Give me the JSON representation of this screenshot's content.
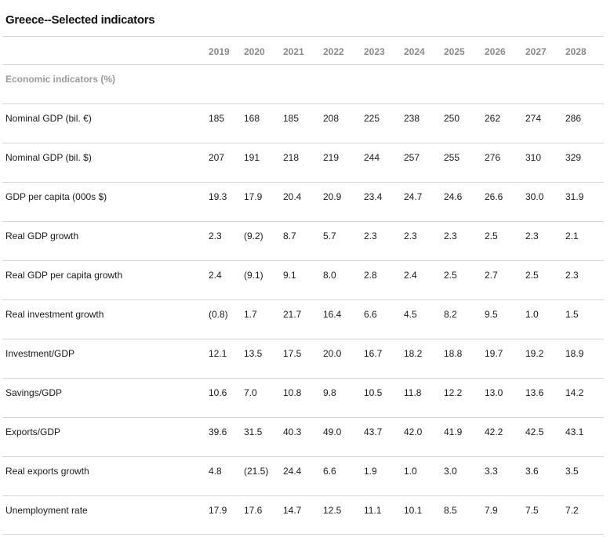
{
  "title": "Greece--Selected indicators",
  "years": [
    "2019",
    "2020",
    "2021",
    "2022",
    "2023",
    "2024",
    "2025",
    "2026",
    "2027",
    "2028"
  ],
  "section_label": "Economic indicators (%)",
  "rows": [
    {
      "label": "Nominal GDP (bil. €)",
      "values": [
        "185",
        "168",
        "185",
        "208",
        "225",
        "238",
        "250",
        "262",
        "274",
        "286"
      ]
    },
    {
      "label": "Nominal GDP (bil. $)",
      "values": [
        "207",
        "191",
        "218",
        "219",
        "244",
        "257",
        "255",
        "276",
        "310",
        "329"
      ]
    },
    {
      "label": "GDP per capita (000s $)",
      "values": [
        "19.3",
        "17.9",
        "20.4",
        "20.9",
        "23.4",
        "24.7",
        "24.6",
        "26.6",
        "30.0",
        "31.9"
      ]
    },
    {
      "label": "Real GDP growth",
      "values": [
        "2.3",
        "(9.2)",
        "8.7",
        "5.7",
        "2.3",
        "2.3",
        "2.3",
        "2.5",
        "2.3",
        "2.1"
      ]
    },
    {
      "label": "Real GDP per capita growth",
      "values": [
        "2.4",
        "(9.1)",
        "9.1",
        "8.0",
        "2.8",
        "2.4",
        "2.5",
        "2.7",
        "2.5",
        "2.3"
      ]
    },
    {
      "label": "Real investment growth",
      "values": [
        "(0.8)",
        "1.7",
        "21.7",
        "16.4",
        "6.6",
        "4.5",
        "8.2",
        "9.5",
        "1.0",
        "1.5"
      ]
    },
    {
      "label": "Investment/GDP",
      "values": [
        "12.1",
        "13.5",
        "17.5",
        "20.0",
        "16.7",
        "18.2",
        "18.8",
        "19.7",
        "19.2",
        "18.9"
      ]
    },
    {
      "label": "Savings/GDP",
      "values": [
        "10.6",
        "7.0",
        "10.8",
        "9.8",
        "10.5",
        "11.8",
        "12.2",
        "13.0",
        "13.6",
        "14.2"
      ]
    },
    {
      "label": "Exports/GDP",
      "values": [
        "39.6",
        "31.5",
        "40.3",
        "49.0",
        "43.7",
        "42.0",
        "41.9",
        "42.2",
        "42.5",
        "43.1"
      ]
    },
    {
      "label": "Real exports growth",
      "values": [
        "4.8",
        "(21.5)",
        "24.4",
        "6.6",
        "1.9",
        "1.0",
        "3.0",
        "3.3",
        "3.6",
        "3.5"
      ]
    },
    {
      "label": "Unemployment rate",
      "values": [
        "17.9",
        "17.6",
        "14.7",
        "12.5",
        "11.1",
        "10.1",
        "8.5",
        "7.9",
        "7.5",
        "7.2"
      ]
    }
  ]
}
